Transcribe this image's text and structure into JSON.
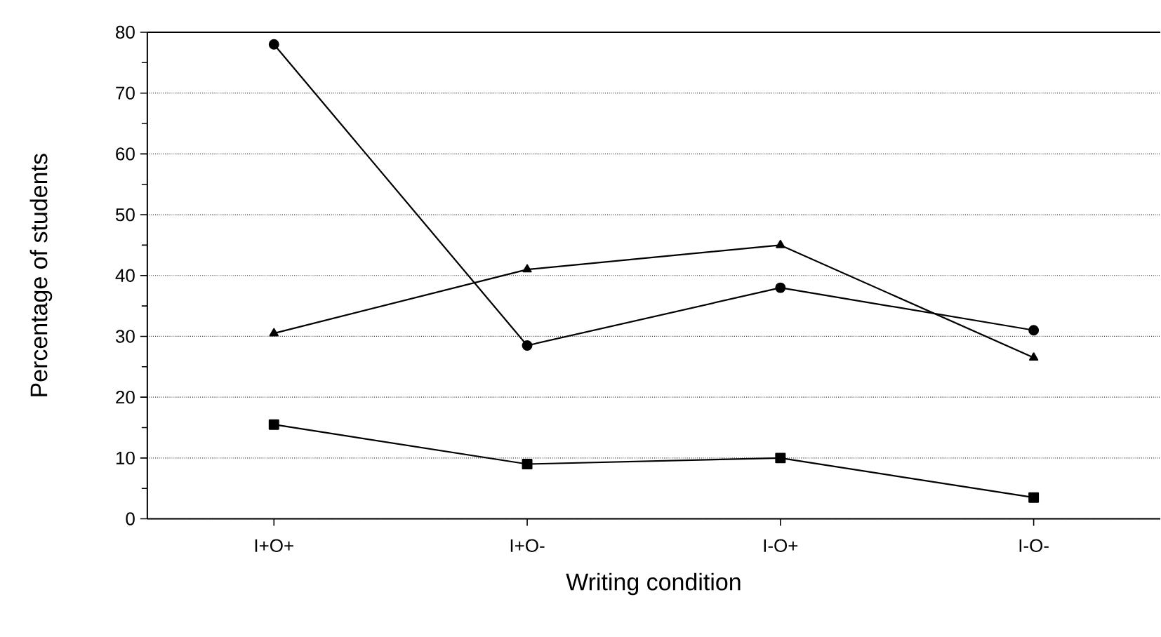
{
  "chart_data": {
    "type": "line",
    "xlabel": "Writing condition",
    "ylabel": "Percentage of students",
    "categories": [
      "I+O+",
      "I+O-",
      "I-O+",
      "I-O-"
    ],
    "series": [
      {
        "color": "#000000",
        "marker": "circle",
        "values": [
          78,
          28.5,
          38,
          31
        ]
      },
      {
        "color": "#000000",
        "marker": "triangle",
        "values": [
          30.5,
          41,
          45,
          26.5
        ]
      },
      {
        "color": "#000000",
        "marker": "square",
        "values": [
          15.5,
          9,
          10,
          3.5
        ]
      }
    ],
    "ylim": [
      0,
      80
    ],
    "yticks": [
      0,
      10,
      20,
      30,
      40,
      50,
      60,
      70,
      80
    ],
    "grid": "y",
    "line_style": "solid"
  }
}
